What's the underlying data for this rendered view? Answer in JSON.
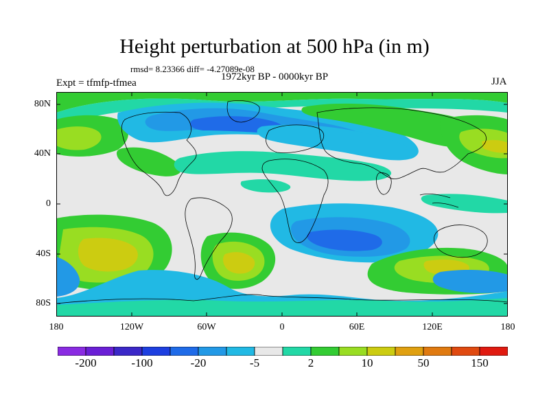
{
  "title": "Height perturbation at 500 hPa (in m)",
  "stats": "rmsd= 8.23366  diff= -4.27089e-08",
  "experiment": "Expt = tfmfp-tfmea",
  "period": "1972kyr BP - 0000kyr BP",
  "season": "JJA",
  "lat_labels": [
    "80N",
    "40N",
    "0",
    "40S",
    "80S"
  ],
  "lon_labels": [
    "180",
    "120W",
    "60W",
    "0",
    "60E",
    "120E",
    "180"
  ],
  "colorbar": {
    "colors": [
      "#8a2be2",
      "#6a1fd6",
      "#3b28c8",
      "#1d3fe0",
      "#1f6be8",
      "#2299e6",
      "#21b9e4",
      "#e8e8e8",
      "#22d8a6",
      "#33cc33",
      "#99dd22",
      "#cccc11",
      "#e0a010",
      "#e07a10",
      "#e04a10",
      "#e01a10"
    ],
    "labels": [
      "-200",
      "-100",
      "-20",
      "-5",
      "2",
      "10",
      "50",
      "150"
    ]
  },
  "fields": {
    "background": "#e8e8e8"
  }
}
